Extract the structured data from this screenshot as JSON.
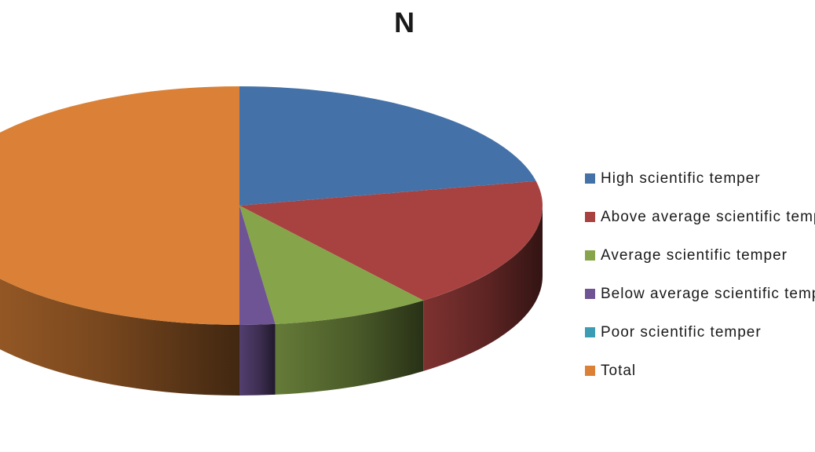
{
  "chart_data": {
    "type": "pie",
    "title": "N",
    "is_3d": true,
    "legend_position": "right",
    "slices": [
      {
        "label": "High scientific temper",
        "value": 23,
        "color": "#4472A8"
      },
      {
        "label": "Above average scientific temper",
        "value": 19,
        "color": "#A84240"
      },
      {
        "label": "Average scientific temper",
        "value": 9,
        "color": "#86A44A"
      },
      {
        "label": "Below average scientific temper",
        "value": 2,
        "color": "#6E5494"
      },
      {
        "label": "Poor scientific temper",
        "value": 0,
        "color": "#3C9CB4"
      },
      {
        "label": "Total",
        "value": 53,
        "color": "#DA8137"
      }
    ]
  }
}
